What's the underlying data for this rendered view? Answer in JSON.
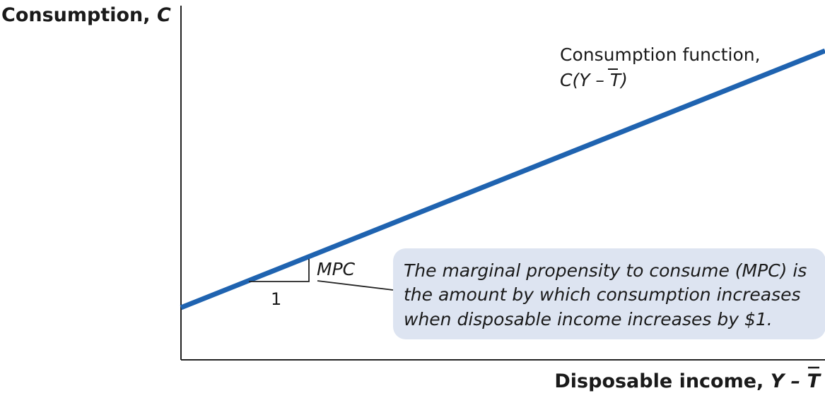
{
  "chart_data": {
    "type": "line",
    "title": "",
    "ylabel_prefix": "Consumption, ",
    "ylabel_var": "C",
    "xlabel_prefix": "Disposable income, ",
    "xlabel_var": "Y – T",
    "series": [
      {
        "name": "Consumption function, C(Y – T)",
        "line1": "Consumption function,",
        "line2": "C(Y – T)",
        "color": "#1f63b0"
      }
    ],
    "slope_triangle": {
      "rise_label": "MPC",
      "run_label": "1"
    },
    "annotation": [
      "The marginal propensity to consume (MPC) is",
      "the amount by which consumption increases",
      "when disposable income increases by $1."
    ],
    "grid": false,
    "colors": {
      "line": "#1f63b0",
      "callout_bg": "#dde4f1",
      "axis": "#222222"
    }
  }
}
